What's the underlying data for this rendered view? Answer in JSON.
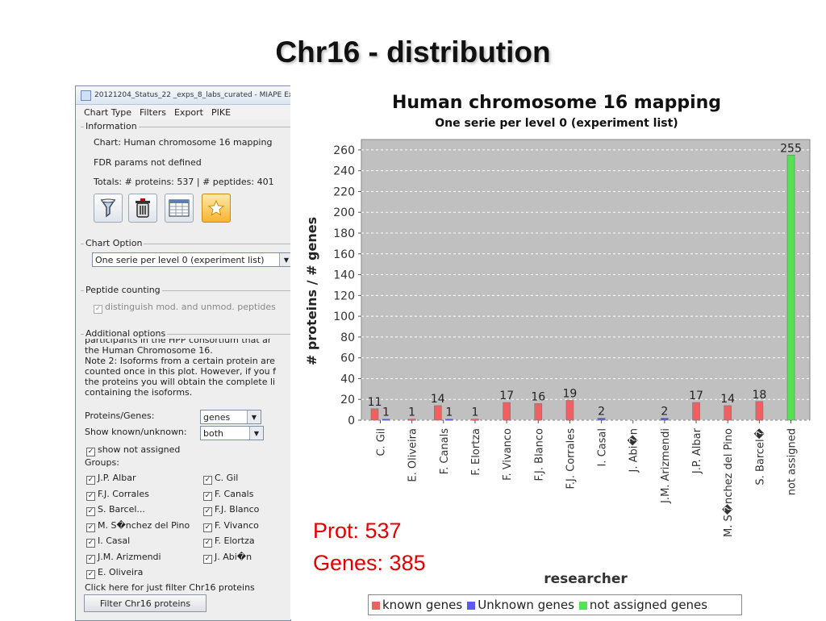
{
  "slide": {
    "title": "Chr16 - distribution"
  },
  "app": {
    "window_title": "20121204_Status_22 _exps_8_labs_curated - MIAPE Ex",
    "menu": [
      "Chart Type",
      "Filters",
      "Export",
      "PIKE"
    ],
    "information": {
      "group_title": "Information",
      "chart_line": "Chart: Human chromosome 16 mapping",
      "fdr_line": "FDR params not defined",
      "totals_line": "Totals: # proteins: 537  |  # peptides: 401",
      "toolbar_icons": [
        "filter-funnel-icon",
        "trash-icon",
        "table-icon",
        "star-icon"
      ]
    },
    "chart_option": {
      "group_title": "Chart Option",
      "selected": "One serie per level 0 (experiment list)"
    },
    "peptide_counting": {
      "group_title": "Peptide counting",
      "checkbox_label": "distinguish mod. and unmod. peptides",
      "checked": true
    },
    "additional_options": {
      "group_title": "Additional options",
      "note_lines": [
        "participants in the HPP consortium that ar",
        "the Human Chromosome 16.",
        "Note 2: Isoforms from a certain protein are",
        "counted once in this plot. However, if you f",
        "the proteins you will obtain the complete li",
        "containing the isoforms."
      ],
      "proteins_genes_label": "Proteins/Genes:",
      "proteins_genes_value": "genes",
      "show_known_label": "Show known/unknown:",
      "show_known_value": "both",
      "show_not_assigned_label": "show not assigned",
      "groups_label": "Groups:",
      "groups": [
        [
          "J.P. Albar",
          "C. Gil"
        ],
        [
          "F.J. Corrales",
          "F. Canals"
        ],
        [
          "S. Barcel...",
          "F.J. Blanco"
        ],
        [
          "M. S�nchez del Pino",
          "F. Vivanco"
        ],
        [
          "I. Casal",
          "F. Elortza"
        ],
        [
          "J.M. Arizmendi",
          "J. Abi�n"
        ],
        [
          "E. Oliveira",
          ""
        ]
      ],
      "filter_hint": "Click here for just filter Chr16 proteins",
      "filter_button": "Filter Chr16 proteins"
    }
  },
  "chart_data": {
    "type": "bar",
    "title": "Human chromosome 16 mapping",
    "subtitle": "One serie per level 0 (experiment list)",
    "xlabel": "researcher",
    "ylabel": "# proteins / # genes",
    "ylim": [
      0,
      270
    ],
    "yticks": [
      0,
      20,
      40,
      60,
      80,
      100,
      120,
      140,
      160,
      180,
      200,
      220,
      240,
      260
    ],
    "grid": true,
    "legend_position": "bottom",
    "categories": [
      "C. Gil",
      "E. Oliveira",
      "F. Canals",
      "F. Elortza",
      "F. Vivanco",
      "F.J. Blanco",
      "F.J. Corrales",
      "I. Casal",
      "J. Abi�n",
      "J.M. Arizmendi",
      "J.P. Albar",
      "M. S�nchez del Pino",
      "S. Barcel�",
      "not assigned"
    ],
    "series": [
      {
        "name": "known genes",
        "color": "#f06060",
        "values": [
          11,
          1,
          14,
          1,
          17,
          16,
          19,
          null,
          null,
          null,
          17,
          14,
          18,
          null
        ]
      },
      {
        "name": "Unknown genes",
        "color": "#5a5aef",
        "values": [
          1,
          null,
          1,
          null,
          null,
          null,
          null,
          2,
          null,
          2,
          null,
          null,
          null,
          null
        ]
      },
      {
        "name": "not assigned genes",
        "color": "#55e055",
        "values": [
          null,
          null,
          null,
          null,
          null,
          null,
          null,
          null,
          null,
          null,
          null,
          null,
          null,
          255
        ]
      }
    ]
  },
  "overlay": {
    "prot_text": "Prot: 537",
    "genes_text": "Genes: 385"
  }
}
